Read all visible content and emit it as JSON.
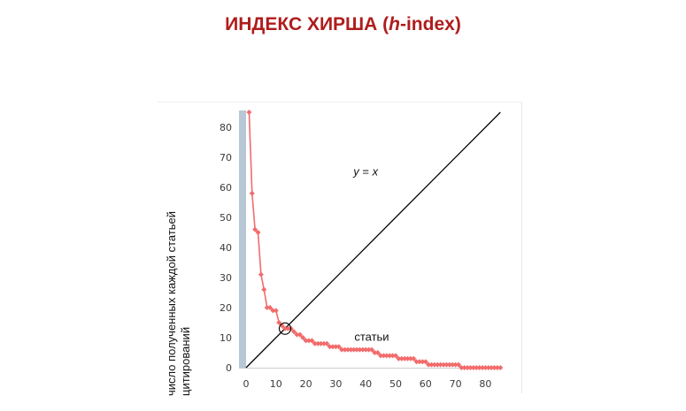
{
  "title": {
    "main": "ИНДЕКС ХИРША (",
    "italic": "h",
    "rest": "-index)"
  },
  "chart_data": {
    "type": "line",
    "title": "ИНДЕКС ХИРША (h-index)",
    "ylabel_line1": "число полученных каждой статьей",
    "ylabel_line2": "цитирований",
    "xlabel": "",
    "xlim": [
      -2,
      85
    ],
    "ylim": [
      0,
      85
    ],
    "x_ticks": [
      "0",
      "10",
      "20",
      "30",
      "40",
      "50",
      "60",
      "70",
      "80"
    ],
    "y_ticks": [
      "0",
      "10",
      "20",
      "30",
      "40",
      "50",
      "60",
      "70",
      "80"
    ],
    "grid": false,
    "series": [
      {
        "name": "статьи",
        "color": "#f26b6b",
        "marker": "diamond",
        "x": [
          1,
          2,
          3,
          4,
          5,
          6,
          7,
          8,
          9,
          10,
          11,
          12,
          13,
          14,
          15,
          16,
          17,
          18,
          19,
          20,
          21,
          22,
          23,
          24,
          25,
          26,
          27,
          28,
          29,
          30,
          31,
          32,
          33,
          34,
          35,
          36,
          37,
          38,
          39,
          40,
          41,
          42,
          43,
          44,
          45,
          46,
          47,
          48,
          49,
          50,
          51,
          52,
          53,
          54,
          55,
          56,
          57,
          58,
          59,
          60,
          61,
          62,
          63,
          64,
          65,
          66,
          67,
          68,
          69,
          70,
          71,
          72,
          73,
          74,
          75,
          76,
          77,
          78,
          79,
          80,
          81,
          82,
          83,
          84,
          85
        ],
        "values": [
          85,
          58,
          46,
          45,
          31,
          26,
          20,
          20,
          19,
          19,
          15,
          14,
          13,
          13,
          13,
          12,
          11,
          11,
          10,
          9,
          9,
          9,
          8,
          8,
          8,
          8,
          8,
          7,
          7,
          7,
          7,
          6,
          6,
          6,
          6,
          6,
          6,
          6,
          6,
          6,
          6,
          6,
          5,
          5,
          4,
          4,
          4,
          4,
          4,
          4,
          3,
          3,
          3,
          3,
          3,
          3,
          2,
          2,
          2,
          2,
          1,
          1,
          1,
          1,
          1,
          1,
          1,
          1,
          1,
          1,
          1,
          0,
          0,
          0,
          0,
          0,
          0,
          0,
          0,
          0,
          0,
          0,
          0,
          0,
          0
        ]
      },
      {
        "name": "y = x",
        "color": "#000000",
        "x": [
          0,
          85
        ],
        "values": [
          0,
          85
        ]
      }
    ],
    "annotations": [
      {
        "text_prefix": "y",
        "text_mid": " = ",
        "text_suffix": "x",
        "x": 40,
        "y": 64
      },
      {
        "text": "статьи",
        "x": 42,
        "y": 9
      }
    ],
    "highlight": {
      "x": 13,
      "y": 13
    }
  }
}
